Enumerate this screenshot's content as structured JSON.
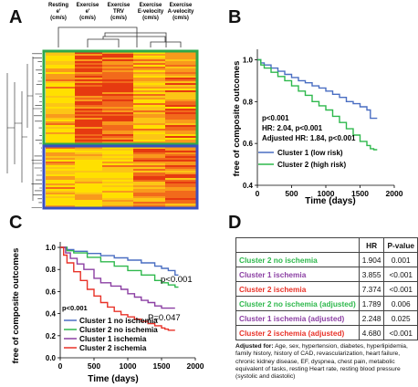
{
  "panels": {
    "a": "A",
    "b": "B",
    "c": "C",
    "d": "D"
  },
  "colors": {
    "blue": "#4a6ec2",
    "green": "#2eb84c",
    "purple": "#8b3fa3",
    "red": "#e83228",
    "heat_low": "#ffe000",
    "heat_mid": "#f99a1c",
    "heat_high": "#e63a10",
    "box_green": "#2fa84a",
    "box_blue": "#3a4fbf"
  },
  "heatmap": {
    "columns": [
      {
        "line1": "Resting",
        "line2": "e'",
        "line3": "(cm/s)"
      },
      {
        "line1": "Exercise",
        "line2": "e'",
        "line3": "(cm/s)"
      },
      {
        "line1": "Exercise",
        "line2": "TRV",
        "line3": "(cm/s)"
      },
      {
        "line1": "Exercise",
        "line2": "E-velocity",
        "line3": "(cm/s)"
      },
      {
        "line1": "Exercise",
        "line2": "A-velocity",
        "line3": "(cm/s)"
      }
    ]
  },
  "chart_data": [
    {
      "type": "line",
      "xlabel": "Time (days)",
      "ylabel": "free of composite outcomes",
      "xlim": [
        0,
        2000
      ],
      "ylim": [
        0.4,
        1.05
      ],
      "xticks": [
        0,
        500,
        1000,
        1500,
        2000
      ],
      "yticks": [
        0.4,
        0.6,
        0.8,
        1.0
      ],
      "stats": {
        "p": "p<0.001",
        "hr": "HR:  2.04, p<0.001",
        "adj": "Adjusted HR: 1.84, p<0.001"
      },
      "series": [
        {
          "name": "Cluster 1 (low risk)",
          "color": "#4a6ec2",
          "x": [
            0,
            50,
            100,
            200,
            300,
            400,
            500,
            600,
            700,
            800,
            900,
            1000,
            1100,
            1200,
            1300,
            1400,
            1500,
            1600,
            1650,
            1700,
            1750
          ],
          "y": [
            1.0,
            0.985,
            0.975,
            0.96,
            0.945,
            0.93,
            0.915,
            0.9,
            0.89,
            0.875,
            0.865,
            0.85,
            0.835,
            0.82,
            0.8,
            0.79,
            0.775,
            0.76,
            0.72,
            0.72,
            0.72
          ]
        },
        {
          "name": "Cluster 2 (high risk)",
          "color": "#2eb84c",
          "x": [
            0,
            50,
            100,
            200,
            300,
            400,
            500,
            600,
            700,
            800,
            900,
            1000,
            1100,
            1200,
            1300,
            1400,
            1500,
            1600,
            1650,
            1700,
            1750
          ],
          "y": [
            1.0,
            0.975,
            0.96,
            0.94,
            0.92,
            0.9,
            0.875,
            0.85,
            0.83,
            0.8,
            0.78,
            0.76,
            0.73,
            0.7,
            0.67,
            0.64,
            0.61,
            0.59,
            0.575,
            0.57,
            0.57
          ]
        }
      ]
    },
    {
      "type": "line",
      "xlabel": "Time (days)",
      "ylabel": "free of composite outcomes",
      "xlim": [
        0,
        2000
      ],
      "ylim": [
        0,
        1.05
      ],
      "xticks": [
        0,
        500,
        1000,
        1500,
        2000
      ],
      "yticks": [
        0.0,
        0.2,
        0.4,
        0.6,
        0.8,
        1.0
      ],
      "annotations": {
        "p_main": "p<0.001",
        "p_top": "p<0.001",
        "p_red": "P=0.047"
      },
      "series": [
        {
          "name": "Cluster 1 no ischemia",
          "color": "#4a6ec2",
          "x": [
            0,
            100,
            200,
            400,
            600,
            800,
            1000,
            1200,
            1400,
            1500,
            1600,
            1700,
            1750
          ],
          "y": [
            1.0,
            0.98,
            0.965,
            0.945,
            0.925,
            0.905,
            0.885,
            0.86,
            0.83,
            0.81,
            0.79,
            0.75,
            0.75
          ]
        },
        {
          "name": "Cluster 2 no ischemia",
          "color": "#2eb84c",
          "x": [
            0,
            100,
            200,
            400,
            600,
            800,
            1000,
            1200,
            1400,
            1500,
            1600,
            1700,
            1750
          ],
          "y": [
            1.0,
            0.97,
            0.95,
            0.91,
            0.87,
            0.83,
            0.79,
            0.75,
            0.7,
            0.68,
            0.66,
            0.64,
            0.64
          ]
        },
        {
          "name": "Cluster 1 ischemia",
          "color": "#8b3fa3",
          "x": [
            0,
            80,
            150,
            250,
            350,
            500,
            600,
            750,
            900,
            1000,
            1100,
            1200,
            1300,
            1400,
            1500,
            1600,
            1700
          ],
          "y": [
            1.0,
            0.95,
            0.9,
            0.85,
            0.8,
            0.72,
            0.68,
            0.65,
            0.62,
            0.58,
            0.55,
            0.52,
            0.5,
            0.47,
            0.45,
            0.45,
            0.45
          ]
        },
        {
          "name": "Cluster 2 ischemia",
          "color": "#e83228",
          "x": [
            0,
            50,
            100,
            200,
            300,
            400,
            500,
            600,
            700,
            800,
            900,
            1000,
            1100,
            1200,
            1300,
            1400,
            1500,
            1550,
            1600,
            1700
          ],
          "y": [
            1.0,
            0.93,
            0.86,
            0.78,
            0.7,
            0.62,
            0.56,
            0.5,
            0.46,
            0.42,
            0.39,
            0.37,
            0.35,
            0.33,
            0.31,
            0.29,
            0.27,
            0.26,
            0.25,
            0.25
          ]
        }
      ]
    }
  ],
  "table": {
    "headers": [
      "",
      "HR",
      "P-value"
    ],
    "rows": [
      {
        "label": "Cluster 2 no ischemia",
        "color": "#2eb84c",
        "hr": "1.904",
        "p": "0.001"
      },
      {
        "label": "Cluster 1 ischemia",
        "color": "#8b3fa3",
        "hr": "3.855",
        "p": "<0.001"
      },
      {
        "label": "Cluster 2  ischemia",
        "color": "#e83228",
        "hr": "7.374",
        "p": "<0.001"
      },
      {
        "label": "Cluster 2 no ischemia (adjusted)",
        "color": "#2eb84c",
        "hr": "1.789",
        "p": "0.006"
      },
      {
        "label": "Cluster 1 ischemia (adjusted)",
        "color": "#8b3fa3",
        "hr": "2.248",
        "p": "0.025"
      },
      {
        "label": "Cluster 2  ischemia (adjusted)",
        "color": "#e83228",
        "hr": "4.680",
        "p": "<0.001"
      }
    ],
    "note_bold": "Adjusted for:",
    "note": " Age, sex, hypertension, diabetes, hyperlipidemia, family history, history of CAD, revascularization, heart failure, chronic kidney disease, EF, dyspnea, chest pain, metabolic equivalent of tasks, resting Heart rate, resting blood pressure (systolic and diastolic)"
  }
}
